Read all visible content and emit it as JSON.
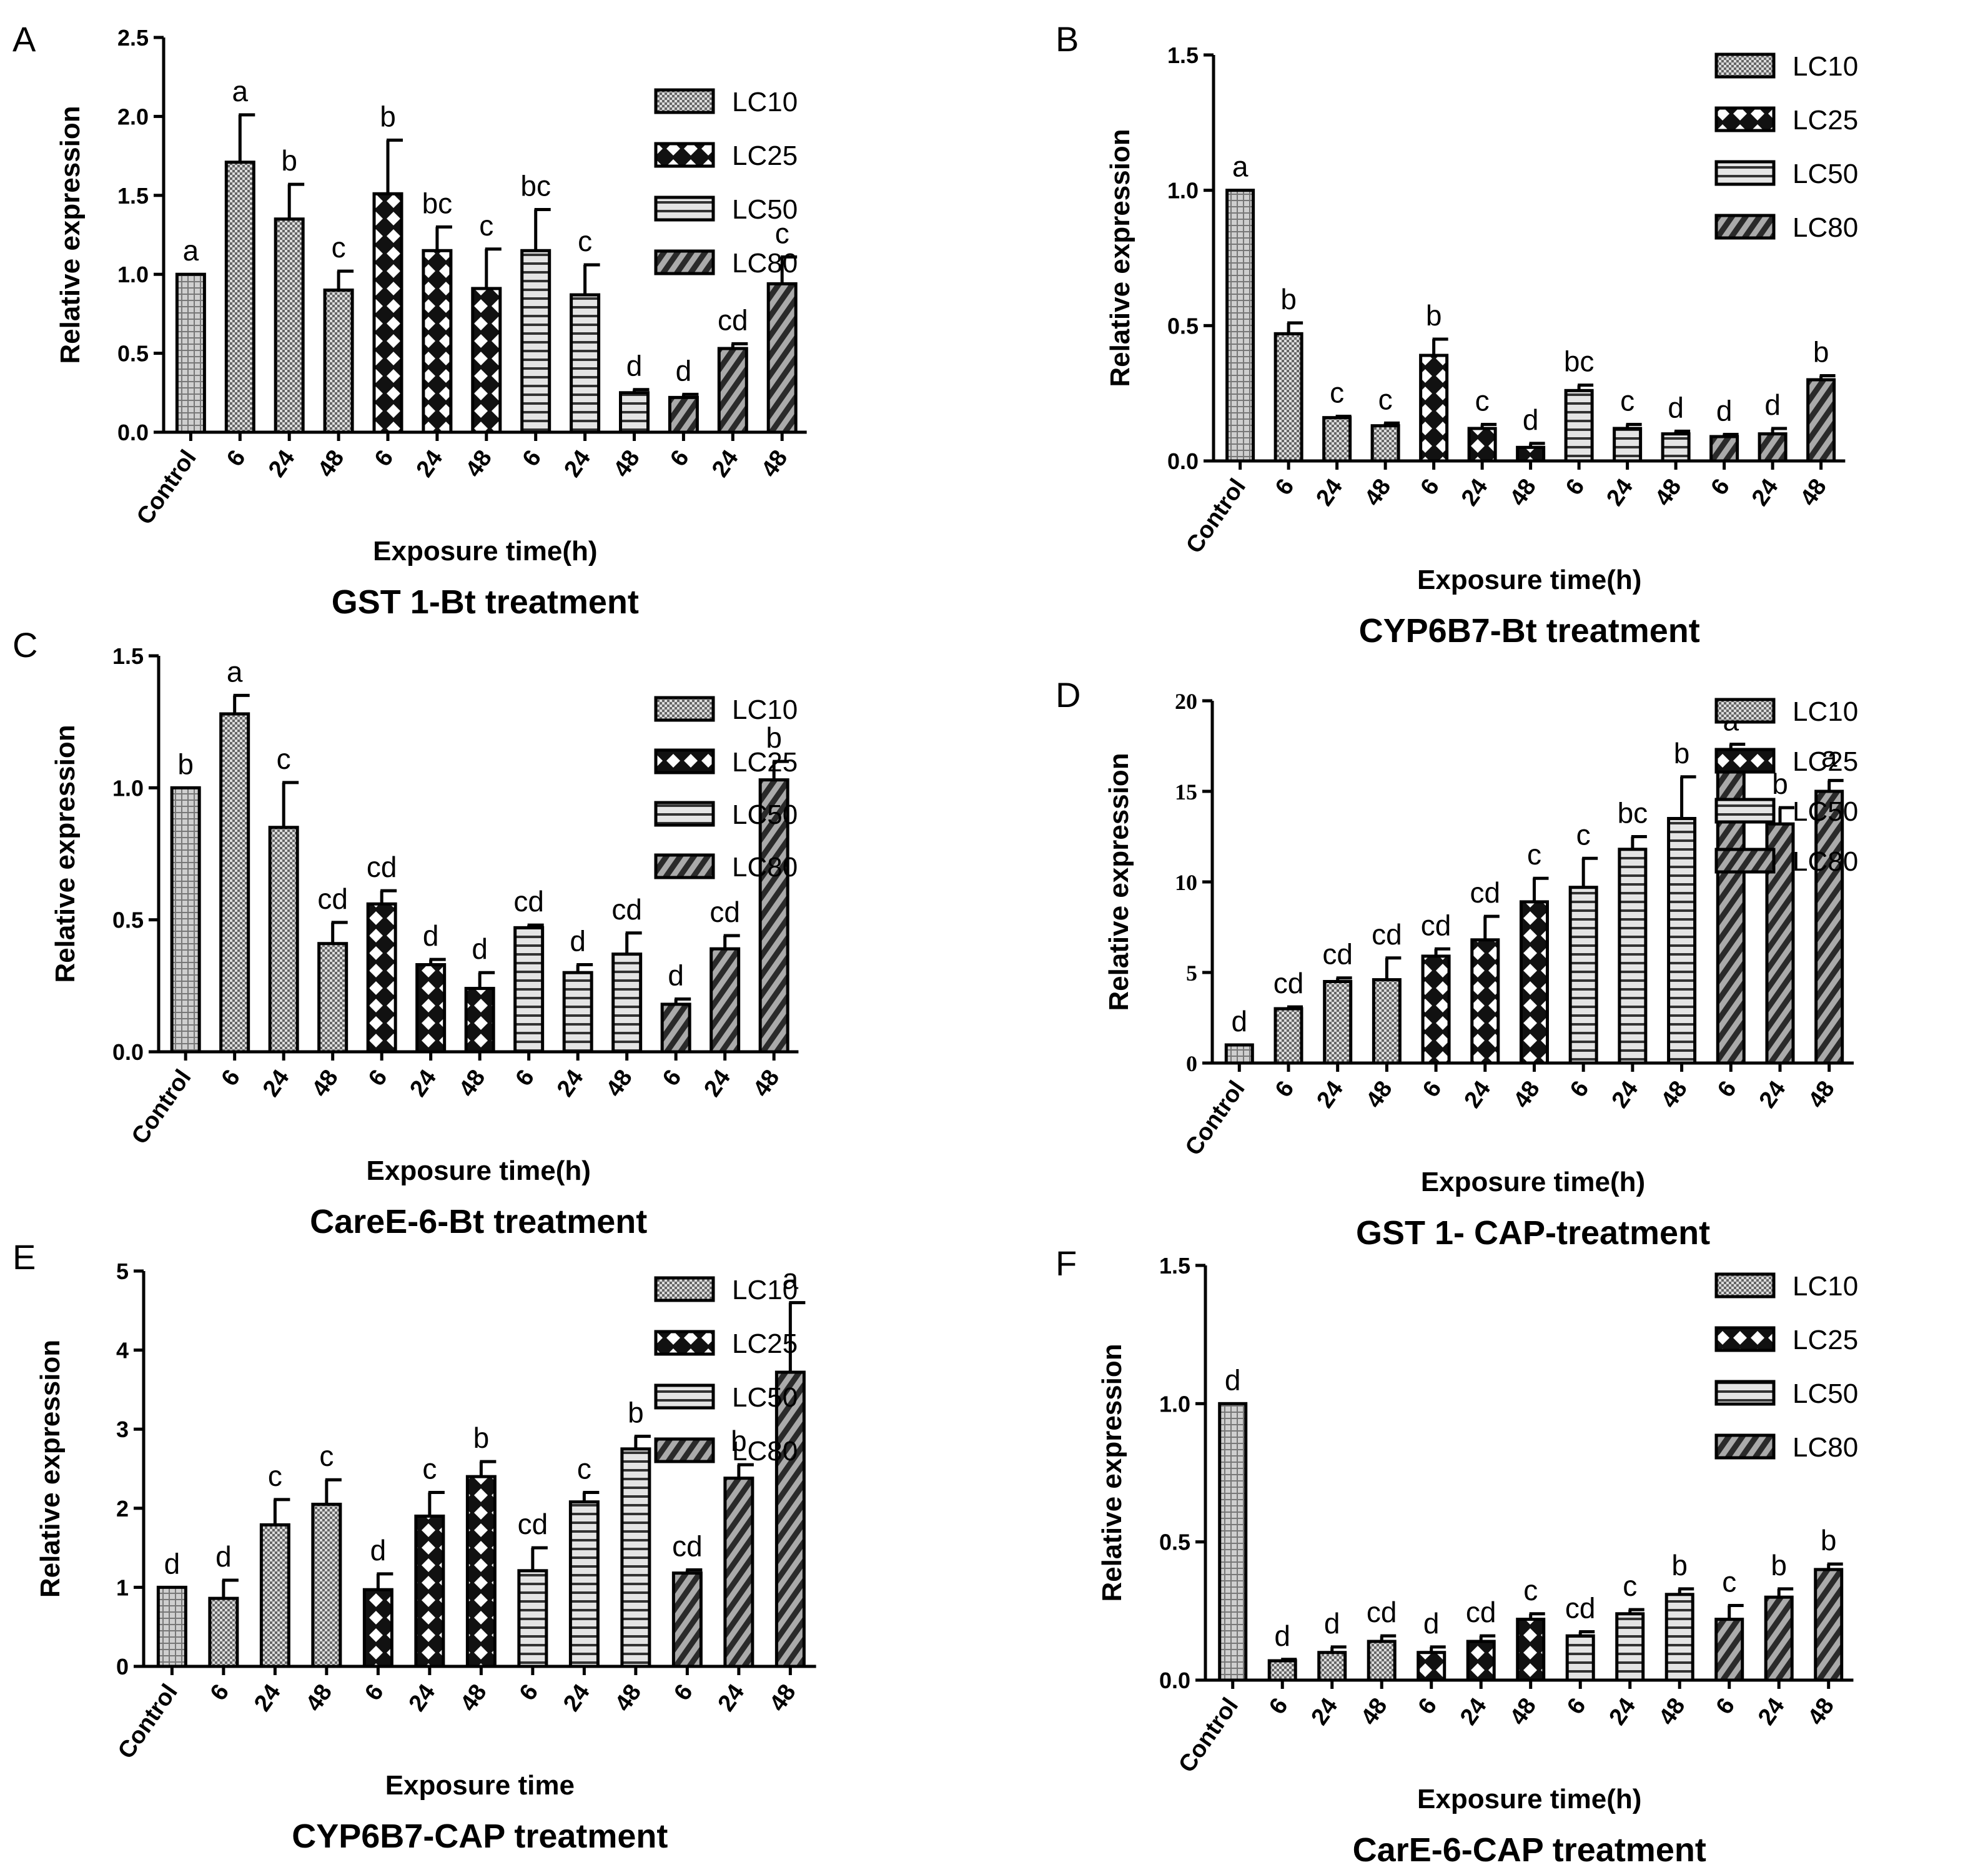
{
  "chart_data": [
    {
      "panel": "A",
      "type": "bar",
      "title": "GST 1-Bt treatment",
      "xlabel": "Exposure time(h)",
      "ylabel": "Relative expression",
      "ylim": [
        0,
        2.5
      ],
      "yticks": [
        "0.0",
        "0.5",
        "1.0",
        "1.5",
        "2.0",
        "2.5"
      ],
      "categories": [
        "Control",
        "6",
        "24",
        "48",
        "6",
        "24",
        "48",
        "6",
        "24",
        "48",
        "6",
        "24",
        "48"
      ],
      "values": [
        1.0,
        1.71,
        1.35,
        0.9,
        1.51,
        1.15,
        0.91,
        1.15,
        0.87,
        0.25,
        0.22,
        0.53,
        0.94
      ],
      "errors": [
        0,
        0.3,
        0.22,
        0.12,
        0.34,
        0.15,
        0.25,
        0.26,
        0.19,
        0.02,
        0.02,
        0.03,
        0.17
      ],
      "significance": [
        "a",
        "a",
        "b",
        "c",
        "b",
        "bc",
        "c",
        "bc",
        "c",
        "d",
        "d",
        "cd",
        "c"
      ],
      "legend": [
        "LC10",
        "LC25",
        "LC50",
        "LC80"
      ]
    },
    {
      "panel": "B",
      "type": "bar",
      "title": "CYP6B7-Bt treatment",
      "xlabel": "Exposure time(h)",
      "ylabel": "Relative expression",
      "ylim": [
        0,
        1.5
      ],
      "yticks": [
        "0.0",
        "0.5",
        "1.0",
        "1.5"
      ],
      "categories": [
        "Control",
        "6",
        "24",
        "48",
        "6",
        "24",
        "48",
        "6",
        "24",
        "48",
        "6",
        "24",
        "48"
      ],
      "values": [
        1.0,
        0.47,
        0.16,
        0.13,
        0.39,
        0.12,
        0.05,
        0.26,
        0.12,
        0.1,
        0.09,
        0.1,
        0.3
      ],
      "errors": [
        0,
        0.04,
        0.005,
        0.01,
        0.06,
        0.015,
        0.015,
        0.02,
        0.015,
        0.01,
        0.008,
        0.02,
        0.015
      ],
      "significance": [
        "a",
        "b",
        "c",
        "c",
        "b",
        "c",
        "d",
        "bc",
        "c",
        "d",
        "d",
        "d",
        "b"
      ],
      "legend": [
        "LC10",
        "LC25",
        "LC50",
        "LC80"
      ]
    },
    {
      "panel": "C",
      "type": "bar",
      "title": "CareE-6-Bt treatment",
      "xlabel": "Exposure time(h)",
      "ylabel": "Relative expression",
      "ylim": [
        0,
        1.5
      ],
      "yticks": [
        "0.0",
        "0.5",
        "1.0",
        "1.5"
      ],
      "categories": [
        "Control",
        "6",
        "24",
        "48",
        "6",
        "24",
        "48",
        "6",
        "24",
        "48",
        "6",
        "24",
        "48"
      ],
      "values": [
        1.0,
        1.28,
        0.85,
        0.41,
        0.56,
        0.33,
        0.24,
        0.47,
        0.3,
        0.37,
        0.18,
        0.39,
        1.03
      ],
      "errors": [
        0,
        0.07,
        0.17,
        0.08,
        0.05,
        0.02,
        0.06,
        0.01,
        0.03,
        0.08,
        0.02,
        0.05,
        0.07
      ],
      "significance": [
        "b",
        "a",
        "c",
        "cd",
        "cd",
        "d",
        "d",
        "cd",
        "d",
        "cd",
        "d",
        "cd",
        "b"
      ],
      "legend": [
        "LC10",
        "LC25",
        "LC50",
        "LC80"
      ]
    },
    {
      "panel": "D",
      "type": "bar",
      "title": "GST 1- CAP-treatment",
      "xlabel": "Exposure time(h)",
      "ylabel": "Relative expression",
      "ylim": [
        0,
        20
      ],
      "yticks": [
        "0",
        "5",
        "10",
        "15",
        "20"
      ],
      "categories": [
        "Control",
        "6",
        "24",
        "48",
        "6",
        "24",
        "48",
        "6",
        "24",
        "48",
        "6",
        "24",
        "48"
      ],
      "values": [
        1.0,
        3.0,
        4.5,
        4.6,
        5.9,
        6.8,
        8.9,
        9.7,
        11.8,
        13.5,
        16.8,
        13.2,
        15.0
      ],
      "errors": [
        0,
        0.1,
        0.2,
        1.2,
        0.4,
        1.3,
        1.3,
        1.6,
        0.7,
        2.3,
        0.8,
        0.9,
        0.6
      ],
      "significance": [
        "d",
        "cd",
        "cd",
        "cd",
        "cd",
        "cd",
        "c",
        "c",
        "bc",
        "b",
        "a",
        "b",
        "a"
      ],
      "legend": [
        "LC10",
        "LC25",
        "LC50",
        "LC80"
      ]
    },
    {
      "panel": "E",
      "type": "bar",
      "title": "CYP6B7-CAP treatment",
      "xlabel": "Exposure time",
      "ylabel": "Relative expression",
      "ylim": [
        0,
        5
      ],
      "yticks": [
        "0",
        "1",
        "2",
        "3",
        "4",
        "5"
      ],
      "categories": [
        "Control",
        "6",
        "24",
        "48",
        "6",
        "24",
        "48",
        "6",
        "24",
        "48",
        "6",
        "24",
        "48"
      ],
      "values": [
        1.0,
        0.86,
        1.79,
        2.05,
        0.97,
        1.9,
        2.4,
        1.21,
        2.08,
        2.75,
        1.18,
        2.38,
        3.72
      ],
      "errors": [
        0,
        0.23,
        0.32,
        0.31,
        0.2,
        0.3,
        0.19,
        0.29,
        0.12,
        0.16,
        0.04,
        0.17,
        0.88
      ],
      "significance": [
        "d",
        "d",
        "c",
        "c",
        "d",
        "c",
        "b",
        "cd",
        "c",
        "b",
        "cd",
        "b",
        "a"
      ],
      "legend": [
        "LC10",
        "LC25",
        "LC50",
        "LC80"
      ]
    },
    {
      "panel": "F",
      "type": "bar",
      "title": "CarE-6-CAP treatment",
      "xlabel": "Exposure time(h)",
      "ylabel": "Relative expression",
      "ylim": [
        0,
        1.5
      ],
      "yticks": [
        "0.0",
        "0.5",
        "1.0",
        "1.5"
      ],
      "categories": [
        "Control",
        "6",
        "24",
        "48",
        "6",
        "24",
        "48",
        "6",
        "24",
        "48",
        "6",
        "24",
        "48"
      ],
      "values": [
        1.0,
        0.07,
        0.1,
        0.14,
        0.1,
        0.14,
        0.22,
        0.16,
        0.24,
        0.31,
        0.22,
        0.3,
        0.4
      ],
      "errors": [
        0,
        0.005,
        0.02,
        0.02,
        0.02,
        0.02,
        0.02,
        0.015,
        0.015,
        0.02,
        0.05,
        0.03,
        0.02
      ],
      "significance": [
        "d",
        "d",
        "d",
        "cd",
        "d",
        "cd",
        "c",
        "cd",
        "c",
        "b",
        "c",
        "b",
        "b"
      ],
      "legend": [
        "LC10",
        "LC25",
        "LC50",
        "LC80"
      ]
    }
  ]
}
